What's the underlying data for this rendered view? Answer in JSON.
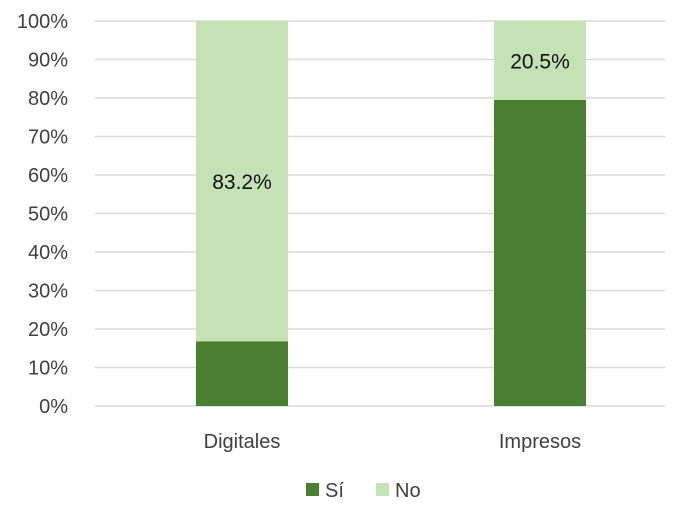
{
  "chart_data": {
    "type": "bar",
    "stacked": true,
    "percent_stacked": true,
    "title": "",
    "xlabel": "",
    "ylabel": "",
    "categories": [
      "Digitales",
      "Impresos"
    ],
    "series": [
      {
        "name": "Sí",
        "values": [
          16.8,
          79.5
        ],
        "color": "#4a7f32"
      },
      {
        "name": "No",
        "values": [
          83.2,
          20.5
        ],
        "color": "#c4e2b6"
      }
    ],
    "data_labels": [
      {
        "series": "No",
        "category": "Digitales",
        "text": "83.2%"
      },
      {
        "series": "No",
        "category": "Impresos",
        "text": "20.5%"
      }
    ],
    "ylim": [
      0,
      100
    ],
    "y_ticks": [
      "0%",
      "10%",
      "20%",
      "30%",
      "40%",
      "50%",
      "60%",
      "70%",
      "80%",
      "90%",
      "100%"
    ],
    "grid": true,
    "legend_position": "bottom"
  }
}
